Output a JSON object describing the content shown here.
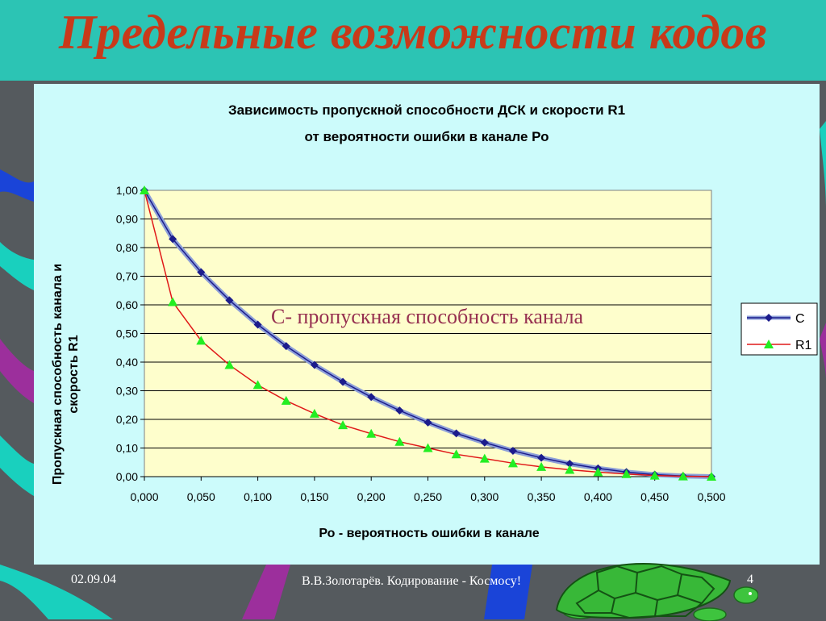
{
  "slide": {
    "title": "Предельные возможности кодов",
    "overlay_note": "С- пропускная способность канала"
  },
  "footer": {
    "date": "02.09.04",
    "author": "В.В.Золотарёв.  Кодирование - Космосу!",
    "page": "4"
  },
  "colors": {
    "title_bar": "#2cc4b4",
    "title_text": "#c83a1a",
    "chart_background": "#ccfbfb",
    "plot_background": "#fefecc",
    "series_c": "#1c1c8c",
    "series_r1_line": "#e01818",
    "series_r1_marker": "#22ee22",
    "overlay_text": "#963050"
  },
  "chart_data": {
    "type": "line",
    "title": "Зависимость пропускной  способности  ДСК  и  скорости  R1",
    "subtitle": "от вероятности ошибки в канале Ро",
    "xlabel": "Ро - вероятность ошибки в канале",
    "ylabel": "Пропускная способность канала и скорость R1",
    "xlim": [
      0,
      0.5
    ],
    "ylim": [
      0,
      1
    ],
    "x_ticks": [
      "0,000",
      "0,050",
      "0,100",
      "0,150",
      "0,200",
      "0,250",
      "0,300",
      "0,350",
      "0,400",
      "0,450",
      "0,500"
    ],
    "y_ticks": [
      "0,00",
      "0,10",
      "0,20",
      "0,30",
      "0,40",
      "0,50",
      "0,60",
      "0,70",
      "0,80",
      "0,90",
      "1,00"
    ],
    "grid": "horizontal",
    "legend": "right",
    "x": [
      0,
      0.025,
      0.05,
      0.075,
      0.1,
      0.125,
      0.15,
      0.175,
      0.2,
      0.225,
      0.25,
      0.275,
      0.3,
      0.325,
      0.35,
      0.375,
      0.4,
      0.425,
      0.45,
      0.475,
      0.5
    ],
    "series": [
      {
        "name": "С",
        "values": [
          1.0,
          0.83,
          0.714,
          0.616,
          0.531,
          0.456,
          0.39,
          0.331,
          0.278,
          0.231,
          0.189,
          0.151,
          0.119,
          0.09,
          0.066,
          0.045,
          0.029,
          0.016,
          0.007,
          0.002,
          0.0
        ]
      },
      {
        "name": "R1",
        "values": [
          1.0,
          0.61,
          0.475,
          0.39,
          0.32,
          0.265,
          0.22,
          0.18,
          0.15,
          0.122,
          0.1,
          0.078,
          0.063,
          0.047,
          0.034,
          0.024,
          0.016,
          0.009,
          0.004,
          0.001,
          0.0
        ]
      }
    ]
  }
}
